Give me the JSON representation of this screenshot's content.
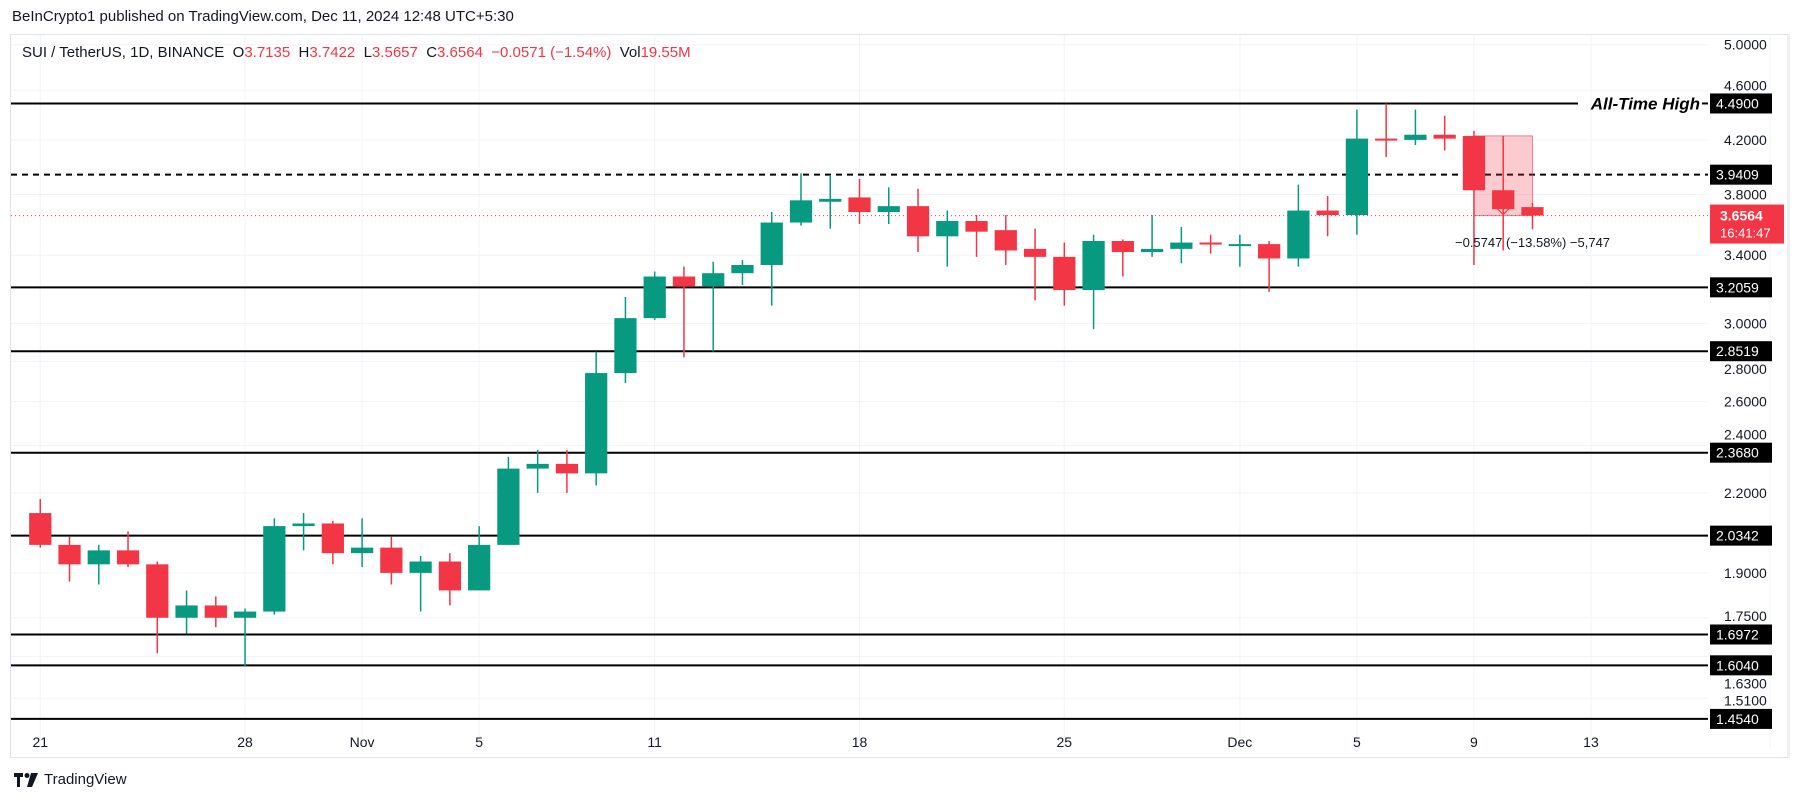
{
  "publisher_line": "BeInCrypto1 published on TradingView.com, Dec 11, 2024 12:48 UTC+5:30",
  "legend": {
    "symbol": "SUI / TetherUS, 1D, BINANCE",
    "o_label": "O",
    "o": "3.7135",
    "h_label": "H",
    "h": "3.7422",
    "l_label": "L",
    "l": "3.5657",
    "c_label": "C",
    "c": "3.6564",
    "change": "−0.0571 (−1.54%)",
    "vol_label": "Vol",
    "vol": "19.55M"
  },
  "footer": {
    "brand": "TradingView",
    "logo_icon": "tradingview-logo-icon"
  },
  "colors": {
    "up": "#089981",
    "down": "#f23645",
    "level": "#000000",
    "grid": "#f0f3fa",
    "measure_fill": "#f23645"
  },
  "chart_data": {
    "type": "candlestick",
    "yscale": "log",
    "ylim": [
      1.43,
      5.09
    ],
    "xlim": [
      "2024-10-20",
      "2024-12-17"
    ],
    "grid": true,
    "y_ticks": [
      "5.0000",
      "4.6000",
      "4.2000",
      "3.8000",
      "3.4000",
      "3.0000",
      "2.8000",
      "2.6000",
      "2.4000",
      "2.2000",
      "1.9000",
      "1.7500",
      "1.6300",
      "1.5100"
    ],
    "x_ticks": [
      {
        "date": "2024-10-21",
        "label": "21"
      },
      {
        "date": "2024-10-28",
        "label": "28"
      },
      {
        "date": "2024-11-01",
        "label": "Nov"
      },
      {
        "date": "2024-11-05",
        "label": "5"
      },
      {
        "date": "2024-11-11",
        "label": "11"
      },
      {
        "date": "2024-11-18",
        "label": "18"
      },
      {
        "date": "2024-11-25",
        "label": "25"
      },
      {
        "date": "2024-12-01",
        "label": "Dec"
      },
      {
        "date": "2024-12-05",
        "label": "5"
      },
      {
        "date": "2024-12-09",
        "label": "9"
      },
      {
        "date": "2024-12-13",
        "label": "13"
      }
    ],
    "candles": [
      [
        "2024-10-21",
        2.12,
        2.175,
        1.99,
        2.0
      ],
      [
        "2024-10-22",
        2.0,
        2.03,
        1.87,
        1.93
      ],
      [
        "2024-10-23",
        1.93,
        2.0,
        1.86,
        1.98
      ],
      [
        "2024-10-24",
        1.98,
        2.05,
        1.92,
        1.93
      ],
      [
        "2024-10-25",
        1.93,
        1.94,
        1.64,
        1.75
      ],
      [
        "2024-10-26",
        1.75,
        1.84,
        1.7,
        1.79
      ],
      [
        "2024-10-27",
        1.79,
        1.82,
        1.72,
        1.75
      ],
      [
        "2024-10-28",
        1.75,
        1.78,
        1.6,
        1.77
      ],
      [
        "2024-10-29",
        1.77,
        2.1,
        1.76,
        2.07
      ],
      [
        "2024-10-30",
        2.07,
        2.12,
        1.98,
        2.08
      ],
      [
        "2024-10-31",
        2.08,
        2.09,
        1.93,
        1.97
      ],
      [
        "2024-11-01",
        1.97,
        2.1,
        1.92,
        1.99
      ],
      [
        "2024-11-02",
        1.99,
        2.03,
        1.86,
        1.9
      ],
      [
        "2024-11-03",
        1.9,
        1.96,
        1.77,
        1.94
      ],
      [
        "2024-11-04",
        1.94,
        1.97,
        1.79,
        1.84
      ],
      [
        "2024-11-05",
        1.84,
        2.07,
        1.84,
        2.0
      ],
      [
        "2024-11-06",
        2.0,
        2.35,
        2.0,
        2.3
      ],
      [
        "2024-11-07",
        2.3,
        2.38,
        2.2,
        2.32
      ],
      [
        "2024-11-08",
        2.32,
        2.38,
        2.2,
        2.28
      ],
      [
        "2024-11-09",
        2.28,
        2.85,
        2.23,
        2.74
      ],
      [
        "2024-11-10",
        2.74,
        3.15,
        2.69,
        3.03
      ],
      [
        "2024-11-11",
        3.03,
        3.3,
        3.02,
        3.27
      ],
      [
        "2024-11-12",
        3.27,
        3.33,
        2.82,
        3.21
      ],
      [
        "2024-11-13",
        3.21,
        3.36,
        2.85,
        3.29
      ],
      [
        "2024-11-14",
        3.29,
        3.37,
        3.22,
        3.34
      ],
      [
        "2024-11-15",
        3.34,
        3.68,
        3.1,
        3.61
      ],
      [
        "2024-11-16",
        3.61,
        3.95,
        3.59,
        3.76
      ],
      [
        "2024-11-17",
        3.75,
        3.94,
        3.57,
        3.77
      ],
      [
        "2024-11-18",
        3.78,
        3.91,
        3.6,
        3.68
      ],
      [
        "2024-11-19",
        3.68,
        3.85,
        3.6,
        3.72
      ],
      [
        "2024-11-20",
        3.72,
        3.84,
        3.42,
        3.52
      ],
      [
        "2024-11-21",
        3.52,
        3.69,
        3.33,
        3.62
      ],
      [
        "2024-11-22",
        3.62,
        3.66,
        3.39,
        3.55
      ],
      [
        "2024-11-23",
        3.56,
        3.66,
        3.34,
        3.43
      ],
      [
        "2024-11-24",
        3.44,
        3.57,
        3.13,
        3.39
      ],
      [
        "2024-11-25",
        3.39,
        3.48,
        3.1,
        3.19
      ],
      [
        "2024-11-26",
        3.19,
        3.53,
        2.97,
        3.49
      ],
      [
        "2024-11-27",
        3.49,
        3.5,
        3.27,
        3.42
      ],
      [
        "2024-11-28",
        3.42,
        3.66,
        3.39,
        3.44
      ],
      [
        "2024-11-29",
        3.44,
        3.58,
        3.35,
        3.48
      ],
      [
        "2024-11-30",
        3.48,
        3.53,
        3.41,
        3.47
      ],
      [
        "2024-12-01",
        3.465,
        3.53,
        3.33,
        3.47
      ],
      [
        "2024-12-02",
        3.47,
        3.49,
        3.18,
        3.38
      ],
      [
        "2024-12-03",
        3.38,
        3.87,
        3.33,
        3.69
      ],
      [
        "2024-12-04",
        3.69,
        3.79,
        3.52,
        3.66
      ],
      [
        "2024-12-05",
        3.66,
        4.44,
        3.53,
        4.21
      ],
      [
        "2024-12-06",
        4.21,
        4.49,
        4.07,
        4.2
      ],
      [
        "2024-12-07",
        4.2,
        4.44,
        4.16,
        4.24
      ],
      [
        "2024-12-08",
        4.24,
        4.39,
        4.12,
        4.21
      ],
      [
        "2024-12-09",
        4.23,
        4.27,
        3.34,
        3.83
      ],
      [
        "2024-12-10",
        3.83,
        4.23,
        3.43,
        3.7
      ],
      [
        "2024-12-11",
        3.7135,
        3.7422,
        3.5657,
        3.6564
      ]
    ],
    "levels": [
      {
        "price": 4.49,
        "label": "4.4900",
        "style": "solid",
        "annotation": "All-Time High"
      },
      {
        "price": 3.9409,
        "label": "3.9409",
        "style": "dashed"
      },
      {
        "price": 3.2059,
        "label": "3.2059",
        "style": "solid"
      },
      {
        "price": 2.8519,
        "label": "2.8519",
        "style": "solid"
      },
      {
        "price": 2.368,
        "label": "2.3680",
        "style": "solid"
      },
      {
        "price": 2.0342,
        "label": "2.0342",
        "style": "solid"
      },
      {
        "price": 1.6972,
        "label": "1.6972",
        "style": "solid"
      },
      {
        "price": 1.604,
        "label": "1.6040",
        "style": "solid"
      },
      {
        "price": 1.454,
        "label": "1.4540",
        "style": "solid"
      }
    ],
    "last_price": {
      "price": 3.6564,
      "label": "3.6564",
      "countdown": "16:41:47"
    },
    "measure": {
      "from_date": "2024-12-09",
      "to_date": "2024-12-11",
      "from_price": 4.2311,
      "to_price": 3.6564,
      "label": "−0.5747 (−13.58%) −5,747"
    }
  }
}
